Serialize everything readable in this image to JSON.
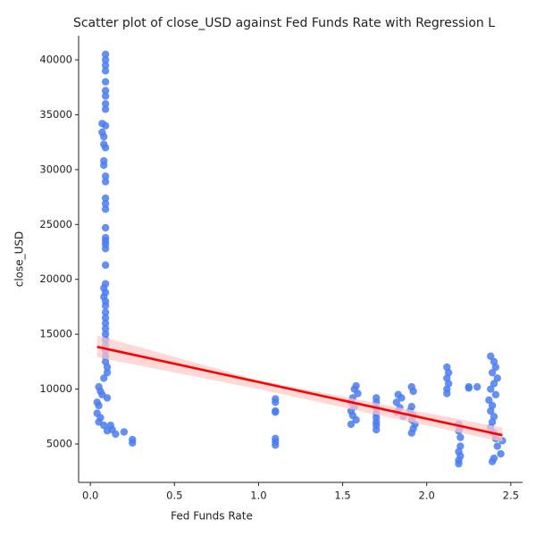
{
  "chart_data": {
    "type": "scatter",
    "title": "Scatter plot of close_USD against Fed Funds Rate with Regression L",
    "x_label": "Fed Funds Rate",
    "y_label": "close_USD",
    "color": "#4a7cf0",
    "line_color": "#ff0000",
    "band_color": "#ffc8c8",
    "xlim": [
      -0.07,
      2.57
    ],
    "ylim": [
      1500,
      42200
    ],
    "xticks": [
      {
        "value": 0,
        "label": "0.0"
      },
      0.5,
      {
        "value": 1,
        "label": "1.0"
      },
      1.5,
      {
        "value": 2,
        "label": "2.0"
      },
      2.5
    ],
    "yticks": [
      5000,
      10000,
      15000,
      20000,
      25000,
      30000,
      35000,
      40000
    ],
    "x": [
      0.09,
      0.09,
      0.09,
      0.09,
      0.09,
      0.09,
      0.09,
      0.09,
      0.09,
      0.07,
      0.09,
      0.07,
      0.08,
      0.08,
      0.09,
      0.08,
      0.08,
      0.09,
      0.09,
      0.09,
      0.09,
      0.09,
      0.09,
      0.09,
      0.09,
      0.09,
      0.09,
      0.09,
      0.09,
      0.08,
      0.09,
      0.08,
      0.09,
      0.09,
      0.09,
      0.09,
      0.09,
      0.09,
      0.09,
      0.09,
      0.09,
      0.09,
      0.09,
      0.09,
      0.1,
      0.1,
      0.08,
      0.05,
      0.06,
      0.07,
      0.1,
      0.04,
      0.05,
      0.04,
      0.06,
      0.05,
      0.08,
      0.1,
      0.12,
      0.13,
      0.15,
      0.2,
      0.25,
      0.25,
      1.1,
      1.1,
      1.1,
      1.1,
      1.1,
      1.1,
      1.1,
      1.58,
      1.57,
      1.59,
      1.56,
      1.55,
      1.57,
      1.55,
      1.56,
      1.58,
      1.55,
      1.7,
      1.7,
      1.7,
      1.7,
      1.7,
      1.7,
      1.7,
      1.7,
      1.83,
      1.85,
      1.82,
      1.84,
      1.82,
      1.86,
      1.91,
      1.92,
      1.91,
      1.9,
      1.92,
      1.91,
      1.93,
      1.92,
      1.91,
      2.12,
      2.13,
      2.12,
      2.13,
      2.12,
      2.12,
      2.25,
      2.25,
      2.3,
      2.19,
      2.2,
      2.19,
      2.2,
      2.2,
      2.19,
      2.2,
      2.19,
      2.19,
      2.38,
      2.4,
      2.41,
      2.39,
      2.42,
      2.4,
      2.38,
      2.41,
      2.37,
      2.39,
      2.38,
      2.4,
      2.39,
      2.38,
      2.4,
      2.41,
      2.45,
      2.42,
      2.44,
      2.4,
      2.39
    ],
    "values": [
      40500,
      40000,
      39500,
      39000,
      38000,
      37200,
      36700,
      36000,
      35500,
      34200,
      34000,
      33400,
      33000,
      32300,
      32000,
      30800,
      30400,
      29400,
      28900,
      27400,
      26900,
      26400,
      24700,
      23800,
      23500,
      23200,
      22800,
      21300,
      19600,
      19200,
      18800,
      18400,
      18000,
      17600,
      17000,
      16500,
      16000,
      15500,
      15000,
      14500,
      14000,
      13500,
      13000,
      12500,
      12000,
      11500,
      11000,
      10200,
      9800,
      9500,
      9200,
      8800,
      8500,
      7800,
      7400,
      7000,
      6700,
      6200,
      6700,
      6300,
      5900,
      6100,
      5400,
      5100,
      9100,
      8800,
      8000,
      7900,
      5500,
      5200,
      4900,
      10300,
      10000,
      9600,
      9200,
      8800,
      8400,
      8000,
      7600,
      7200,
      6800,
      9200,
      8800,
      8300,
      7800,
      7400,
      7000,
      6700,
      6300,
      9500,
      9200,
      8800,
      8300,
      7900,
      7500,
      10200,
      9800,
      8400,
      8000,
      7600,
      7200,
      6800,
      6400,
      6000,
      12000,
      11500,
      11000,
      10500,
      10000,
      9600,
      10200,
      10100,
      10200,
      6800,
      6500,
      6200,
      5600,
      4800,
      4300,
      3900,
      3500,
      3200,
      13000,
      12500,
      12000,
      11500,
      11000,
      10500,
      10000,
      9500,
      9000,
      8500,
      8000,
      7500,
      7000,
      6500,
      6000,
      5500,
      5300,
      4800,
      4100,
      3700,
      3400
    ],
    "regression": {
      "x": [
        0.04,
        2.45
      ],
      "y": [
        13850,
        5800
      ],
      "band_x": [
        0.04,
        1.0,
        2.45
      ],
      "ci_upper": [
        14900,
        10800,
        6500
      ],
      "ci_lower": [
        12900,
        10000,
        5200
      ]
    }
  }
}
